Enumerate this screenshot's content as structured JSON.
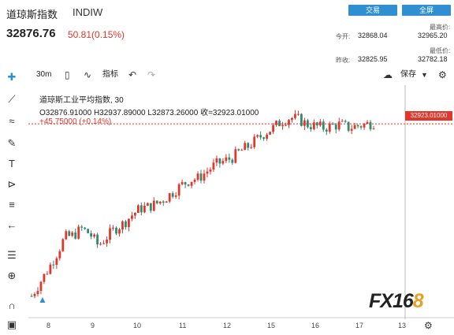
{
  "header": {
    "title": "道琼斯指数",
    "code": "INDIW",
    "trade_label": "交易",
    "full_label": "全屏",
    "price": "32876.76",
    "change": "50.81(0.15%)",
    "open_label": "今开:",
    "open_value": "32868.04",
    "high_label": "最高价:",
    "high_value": "32965.20",
    "prev_close_label": "昨收:",
    "prev_close_value": "32825.95",
    "low_label": "最低价:",
    "low_value": "32782.18"
  },
  "toolbar": {
    "interval": "30m",
    "indicators": "指标",
    "save": "保存"
  },
  "legend": {
    "name": "道琼斯工业平均指数, 30",
    "ohlc": "O32876.91000  H32937.89000  L32873.26000  收=32923.01000",
    "change": "+45.75000 (+0.14%)"
  },
  "price_tag": "32923.01000",
  "colors": {
    "up": "#e0362c",
    "down": "#2e8b6e",
    "accent": "#2f8fd0"
  },
  "logo": {
    "text": "FX16",
    "accent": "8"
  },
  "chart_data": {
    "type": "candlestick",
    "x_ticks": [
      "8",
      "9",
      "10",
      "11",
      "12",
      "15",
      "16",
      "17",
      "13"
    ],
    "last_price": 32923.01,
    "trend": [
      31900,
      31980,
      32060,
      32150,
      32250,
      32260,
      32300,
      32270,
      32200,
      32250,
      32300,
      32330,
      32380,
      32420,
      32430,
      32450,
      32480,
      32520,
      32560,
      32590,
      32600,
      32640,
      32680,
      32700,
      32720,
      32760,
      32790,
      32830,
      32870,
      32900,
      32940,
      32960,
      32950,
      32920,
      32910,
      32900,
      32910,
      32920,
      32900,
      32910,
      32920,
      32930
    ]
  }
}
